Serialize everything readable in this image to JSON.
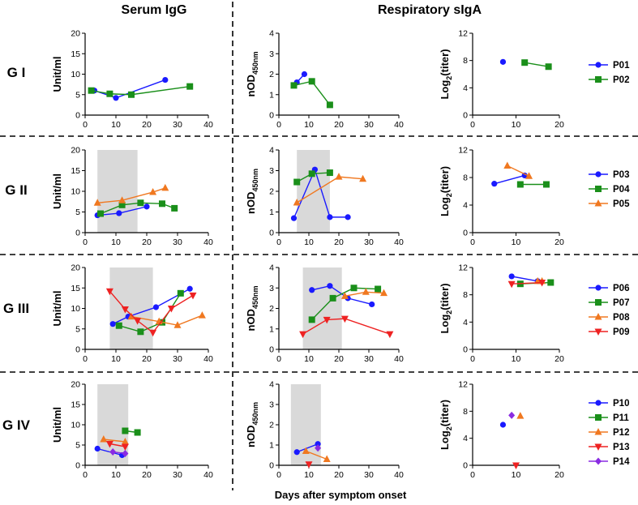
{
  "headers": {
    "serum": "Serum IgG",
    "resp": "Respiratory sIgA",
    "xlabel": "Days after symptom onset"
  },
  "groups": [
    "G I",
    "G II",
    "G III",
    "G IV"
  ],
  "axis_labels": {
    "unit": "Unit/ml",
    "nod": "nOD",
    "nod_sub": "450nm",
    "log_a": "Log",
    "log_sub": "2",
    "log_b": "(titer)"
  },
  "colors": {
    "P01": "#1a1aff",
    "P02": "#1a8f1a",
    "P03": "#1a1aff",
    "P04": "#1a8f1a",
    "P05": "#f07820",
    "P06": "#1a1aff",
    "P07": "#1a8f1a",
    "P08": "#f07820",
    "P09": "#ee2222",
    "P10": "#1a1aff",
    "P11": "#1a8f1a",
    "P12": "#f07820",
    "P13": "#ee2222",
    "P14": "#8a2be2"
  },
  "chart_data": [
    {
      "type": "line",
      "group": "G I",
      "panel": "Serum IgG",
      "xlabel": "Days after symptom onset",
      "ylabel": "Unit/ml",
      "xlim": [
        0,
        40
      ],
      "ylim": [
        0,
        20
      ],
      "xticks": [
        0,
        10,
        20,
        30,
        40
      ],
      "yticks": [
        0,
        5,
        10,
        15,
        20
      ],
      "shade": null,
      "series": [
        {
          "name": "P01",
          "marker": "circle",
          "x": [
            3,
            10,
            26
          ],
          "y": [
            6,
            4.2,
            8.6
          ]
        },
        {
          "name": "P02",
          "marker": "square",
          "x": [
            2,
            8,
            15,
            34
          ],
          "y": [
            6,
            5.2,
            5,
            7
          ]
        }
      ]
    },
    {
      "type": "line",
      "group": "G I",
      "panel": "Respiratory sIgA",
      "xlabel": "Days after symptom onset",
      "ylabel": "nOD450nm",
      "xlim": [
        0,
        40
      ],
      "ylim": [
        0,
        4
      ],
      "xticks": [
        0,
        10,
        20,
        30,
        40
      ],
      "yticks": [
        0,
        1,
        2,
        3,
        4
      ],
      "shade": null,
      "series": [
        {
          "name": "P01",
          "marker": "circle",
          "x": [
            6,
            8.5
          ],
          "y": [
            1.6,
            2
          ]
        },
        {
          "name": "P02",
          "marker": "square",
          "x": [
            5,
            11,
            17
          ],
          "y": [
            1.45,
            1.65,
            0.5
          ]
        }
      ]
    },
    {
      "type": "line",
      "group": "G I",
      "panel": "Respiratory sIgA titer",
      "xlabel": "Days after symptom onset",
      "ylabel": "Log2(titer)",
      "xlim": [
        0,
        20
      ],
      "ylim": [
        0,
        12
      ],
      "xticks": [
        0,
        10,
        20
      ],
      "yticks": [
        0,
        4,
        8,
        12
      ],
      "shade": null,
      "series": [
        {
          "name": "P01",
          "marker": "circle",
          "x": [
            7
          ],
          "y": [
            7.8
          ]
        },
        {
          "name": "P02",
          "marker": "square",
          "x": [
            12,
            17.5
          ],
          "y": [
            7.7,
            7.1
          ]
        }
      ]
    },
    {
      "type": "line",
      "group": "G II",
      "panel": "Serum IgG",
      "xlabel": "Days after symptom onset",
      "ylabel": "Unit/ml",
      "xlim": [
        0,
        40
      ],
      "ylim": [
        0,
        20
      ],
      "xticks": [
        0,
        10,
        20,
        30,
        40
      ],
      "yticks": [
        0,
        5,
        10,
        15,
        20
      ],
      "shade": [
        4,
        17
      ],
      "series": [
        {
          "name": "P03",
          "marker": "circle",
          "x": [
            4,
            11,
            20
          ],
          "y": [
            4.2,
            4.7,
            6.3
          ]
        },
        {
          "name": "P04",
          "marker": "square",
          "x": [
            5,
            12,
            18,
            25,
            29
          ],
          "y": [
            4.6,
            6.7,
            7.2,
            7,
            5.9
          ]
        },
        {
          "name": "P05",
          "marker": "triangle",
          "x": [
            4,
            12,
            22,
            26
          ],
          "y": [
            7.2,
            7.8,
            9.8,
            10.8
          ]
        }
      ]
    },
    {
      "type": "line",
      "group": "G II",
      "panel": "Respiratory sIgA",
      "xlabel": "Days after symptom onset",
      "ylabel": "nOD450nm",
      "xlim": [
        0,
        40
      ],
      "ylim": [
        0,
        4
      ],
      "xticks": [
        0,
        10,
        20,
        30,
        40
      ],
      "yticks": [
        0,
        1,
        2,
        3,
        4
      ],
      "shade": [
        6,
        17
      ],
      "series": [
        {
          "name": "P03",
          "marker": "circle",
          "x": [
            5,
            12,
            17,
            23
          ],
          "y": [
            0.7,
            3.05,
            0.75,
            0.75
          ]
        },
        {
          "name": "P04",
          "marker": "square",
          "x": [
            6,
            11,
            17
          ],
          "y": [
            2.45,
            2.85,
            2.9
          ]
        },
        {
          "name": "P05",
          "marker": "triangle",
          "x": [
            6,
            20,
            28
          ],
          "y": [
            1.45,
            2.7,
            2.6
          ]
        }
      ]
    },
    {
      "type": "line",
      "group": "G II",
      "panel": "Respiratory sIgA titer",
      "xlabel": "Days after symptom onset",
      "ylabel": "Log2(titer)",
      "xlim": [
        0,
        20
      ],
      "ylim": [
        0,
        12
      ],
      "xticks": [
        0,
        10,
        20
      ],
      "yticks": [
        0,
        4,
        8,
        12
      ],
      "shade": null,
      "series": [
        {
          "name": "P03",
          "marker": "circle",
          "x": [
            5,
            12
          ],
          "y": [
            7.1,
            8.3
          ]
        },
        {
          "name": "P04",
          "marker": "square",
          "x": [
            11,
            17
          ],
          "y": [
            7,
            7
          ]
        },
        {
          "name": "P05",
          "marker": "triangle",
          "x": [
            8,
            13
          ],
          "y": [
            9.7,
            8.2
          ]
        }
      ]
    },
    {
      "type": "line",
      "group": "G III",
      "panel": "Serum IgG",
      "xlabel": "Days after symptom onset",
      "ylabel": "Unit/ml",
      "xlim": [
        0,
        40
      ],
      "ylim": [
        0,
        20
      ],
      "xticks": [
        0,
        10,
        20,
        30,
        40
      ],
      "yticks": [
        0,
        5,
        10,
        15,
        20
      ],
      "shade": [
        8,
        22
      ],
      "series": [
        {
          "name": "P06",
          "marker": "circle",
          "x": [
            9,
            14,
            23,
            34
          ],
          "y": [
            6.2,
            8,
            10.3,
            14.8
          ]
        },
        {
          "name": "P07",
          "marker": "square",
          "x": [
            11,
            18,
            25,
            31
          ],
          "y": [
            5.8,
            4.3,
            6.6,
            13.7
          ]
        },
        {
          "name": "P08",
          "marker": "triangle",
          "x": [
            15,
            24,
            30,
            38
          ],
          "y": [
            8,
            6.8,
            5.9,
            8.3
          ]
        },
        {
          "name": "P09",
          "marker": "triangle-down",
          "x": [
            8,
            13,
            17,
            22,
            28,
            35
          ],
          "y": [
            14.2,
            9.8,
            7,
            4.1,
            10,
            13.2
          ]
        }
      ]
    },
    {
      "type": "line",
      "group": "G III",
      "panel": "Respiratory sIgA",
      "xlabel": "Days after symptom onset",
      "ylabel": "nOD450nm",
      "xlim": [
        0,
        40
      ],
      "ylim": [
        0,
        4
      ],
      "xticks": [
        0,
        10,
        20,
        30,
        40
      ],
      "yticks": [
        0,
        1,
        2,
        3,
        4
      ],
      "shade": [
        8,
        21
      ],
      "series": [
        {
          "name": "P06",
          "marker": "circle",
          "x": [
            11,
            17,
            23,
            31
          ],
          "y": [
            2.9,
            3.1,
            2.5,
            2.2
          ]
        },
        {
          "name": "P07",
          "marker": "square",
          "x": [
            11,
            18,
            25,
            33
          ],
          "y": [
            1.45,
            2.5,
            3,
            2.95
          ]
        },
        {
          "name": "P08",
          "marker": "triangle",
          "x": [
            22,
            29,
            35
          ],
          "y": [
            2.6,
            2.8,
            2.75
          ]
        },
        {
          "name": "P09",
          "marker": "triangle-down",
          "x": [
            8,
            16,
            22,
            37
          ],
          "y": [
            0.75,
            1.45,
            1.5,
            0.75
          ]
        }
      ]
    },
    {
      "type": "line",
      "group": "G III",
      "panel": "Respiratory sIgA titer",
      "xlabel": "Days after symptom onset",
      "ylabel": "Log2(titer)",
      "xlim": [
        0,
        20
      ],
      "ylim": [
        0,
        12
      ],
      "xticks": [
        0,
        10,
        20
      ],
      "yticks": [
        0,
        4,
        8,
        12
      ],
      "shade": null,
      "series": [
        {
          "name": "P06",
          "marker": "circle",
          "x": [
            9,
            15
          ],
          "y": [
            10.7,
            10
          ]
        },
        {
          "name": "P07",
          "marker": "square",
          "x": [
            11,
            18
          ],
          "y": [
            9.6,
            9.8
          ]
        },
        {
          "name": "P08",
          "marker": "triangle",
          "x": [
            15,
            16
          ],
          "y": [
            10,
            10
          ]
        },
        {
          "name": "P09",
          "marker": "triangle-down",
          "x": [
            9,
            16
          ],
          "y": [
            9.6,
            9.8
          ]
        }
      ]
    },
    {
      "type": "line",
      "group": "G IV",
      "panel": "Serum IgG",
      "xlabel": "Days after symptom onset",
      "ylabel": "Unit/ml",
      "xlim": [
        0,
        40
      ],
      "ylim": [
        0,
        20
      ],
      "xticks": [
        0,
        10,
        20,
        30,
        40
      ],
      "yticks": [
        0,
        5,
        10,
        15,
        20
      ],
      "shade": [
        4,
        14
      ],
      "series": [
        {
          "name": "P10",
          "marker": "circle",
          "x": [
            4,
            12
          ],
          "y": [
            4.1,
            2.5
          ]
        },
        {
          "name": "P11",
          "marker": "square",
          "x": [
            13,
            17
          ],
          "y": [
            8.5,
            8.1
          ]
        },
        {
          "name": "P12",
          "marker": "triangle",
          "x": [
            6,
            13
          ],
          "y": [
            6.4,
            5.8
          ]
        },
        {
          "name": "P13",
          "marker": "triangle-down",
          "x": [
            8,
            13
          ],
          "y": [
            5.3,
            4.6
          ]
        },
        {
          "name": "P14",
          "marker": "diamond",
          "x": [
            9,
            13
          ],
          "y": [
            3.3,
            2.9
          ]
        }
      ]
    },
    {
      "type": "line",
      "group": "G IV",
      "panel": "Respiratory sIgA",
      "xlabel": "Days after symptom onset",
      "ylabel": "nOD450nm",
      "xlim": [
        0,
        40
      ],
      "ylim": [
        0,
        4
      ],
      "xticks": [
        0,
        10,
        20,
        30,
        40
      ],
      "yticks": [
        0,
        1,
        2,
        3,
        4
      ],
      "shade": [
        4,
        14
      ],
      "series": [
        {
          "name": "P10",
          "marker": "circle",
          "x": [
            6,
            13
          ],
          "y": [
            0.65,
            1.05
          ]
        },
        {
          "name": "P12",
          "marker": "triangle",
          "x": [
            9,
            16
          ],
          "y": [
            0.7,
            0.3
          ]
        },
        {
          "name": "P13",
          "marker": "triangle-down",
          "x": [
            10
          ],
          "y": [
            0.05
          ]
        },
        {
          "name": "P14",
          "marker": "diamond",
          "x": [
            13
          ],
          "y": [
            0.85
          ]
        }
      ]
    },
    {
      "type": "scatter",
      "group": "G IV",
      "panel": "Respiratory sIgA titer",
      "xlabel": "Days after symptom onset",
      "ylabel": "Log2(titer)",
      "xlim": [
        0,
        20
      ],
      "ylim": [
        0,
        12
      ],
      "xticks": [
        0,
        10,
        20
      ],
      "yticks": [
        0,
        4,
        8,
        12
      ],
      "shade": null,
      "series": [
        {
          "name": "P10",
          "marker": "circle",
          "x": [
            7
          ],
          "y": [
            6
          ]
        },
        {
          "name": "P12",
          "marker": "triangle",
          "x": [
            11
          ],
          "y": [
            7.3
          ]
        },
        {
          "name": "P13",
          "marker": "triangle-down",
          "x": [
            10
          ],
          "y": [
            0
          ]
        },
        {
          "name": "P14",
          "marker": "diamond",
          "x": [
            9
          ],
          "y": [
            7.4
          ]
        }
      ]
    }
  ],
  "legends": [
    [
      {
        "name": "P01",
        "marker": "circle"
      },
      {
        "name": "P02",
        "marker": "square"
      }
    ],
    [
      {
        "name": "P03",
        "marker": "circle"
      },
      {
        "name": "P04",
        "marker": "square"
      },
      {
        "name": "P05",
        "marker": "triangle"
      }
    ],
    [
      {
        "name": "P06",
        "marker": "circle"
      },
      {
        "name": "P07",
        "marker": "square"
      },
      {
        "name": "P08",
        "marker": "triangle"
      },
      {
        "name": "P09",
        "marker": "triangle-down"
      }
    ],
    [
      {
        "name": "P10",
        "marker": "circle"
      },
      {
        "name": "P11",
        "marker": "square"
      },
      {
        "name": "P12",
        "marker": "triangle"
      },
      {
        "name": "P13",
        "marker": "triangle-down"
      },
      {
        "name": "P14",
        "marker": "diamond"
      }
    ]
  ]
}
